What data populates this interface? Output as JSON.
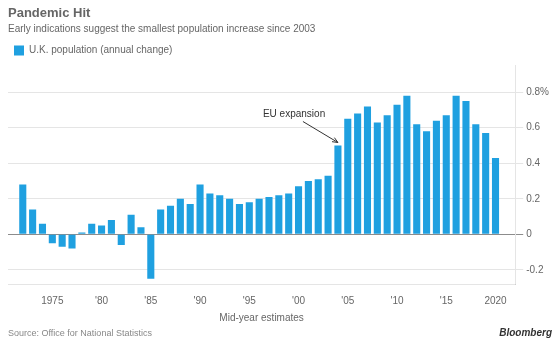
{
  "chart_data": {
    "type": "bar",
    "title": "Pandemic Hit",
    "subtitle": "Early indications suggest the smallest population increase since 2003",
    "xlabel": "Mid-year estimates",
    "source": "Source: Office for National Statistics",
    "credit": "Bloomberg",
    "annotations": [
      {
        "text": "EU expansion",
        "x": 2004,
        "y": 0.5
      }
    ],
    "x": [
      1972,
      1973,
      1974,
      1975,
      1976,
      1977,
      1978,
      1979,
      1980,
      1981,
      1982,
      1983,
      1984,
      1985,
      1986,
      1987,
      1988,
      1989,
      1990,
      1991,
      1992,
      1993,
      1994,
      1995,
      1996,
      1997,
      1998,
      1999,
      2000,
      2001,
      2002,
      2003,
      2004,
      2005,
      2006,
      2007,
      2008,
      2009,
      2010,
      2011,
      2012,
      2013,
      2014,
      2015,
      2016,
      2017,
      2018,
      2019,
      2020
    ],
    "series": [
      {
        "name": "U.K. population (annual change)",
        "color": "#1fa0e0",
        "values": [
          0.28,
          0.14,
          0.06,
          -0.05,
          -0.07,
          -0.08,
          0.01,
          0.06,
          0.05,
          0.08,
          -0.06,
          0.11,
          0.04,
          -0.25,
          0.14,
          0.16,
          0.2,
          0.17,
          0.28,
          0.23,
          0.22,
          0.2,
          0.17,
          0.18,
          0.2,
          0.21,
          0.22,
          0.23,
          0.27,
          0.3,
          0.31,
          0.33,
          0.5,
          0.65,
          0.68,
          0.72,
          0.63,
          0.67,
          0.73,
          0.78,
          0.62,
          0.58,
          0.64,
          0.67,
          0.78,
          0.75,
          0.62,
          0.57,
          0.43
        ]
      }
    ],
    "xlim": [
      1970.5,
      2022
    ],
    "xticks": [
      1975,
      {
        "value": 1980,
        "label": "'80"
      },
      {
        "value": 1985,
        "label": "'85"
      },
      {
        "value": 1990,
        "label": "'90"
      },
      {
        "value": 1995,
        "label": "'95"
      },
      {
        "value": 2000,
        "label": "'00"
      },
      {
        "value": 2005,
        "label": "'05"
      },
      {
        "value": 2010,
        "label": "'10"
      },
      {
        "value": 2015,
        "label": "'15"
      },
      2020
    ],
    "ylim": [
      -0.28,
      0.95
    ],
    "yticks": [
      -0.2,
      0,
      0.2,
      0.4,
      0.6,
      {
        "value": 0.8,
        "label": "0.8%"
      }
    ],
    "grid": "y",
    "legend": "upper left"
  }
}
